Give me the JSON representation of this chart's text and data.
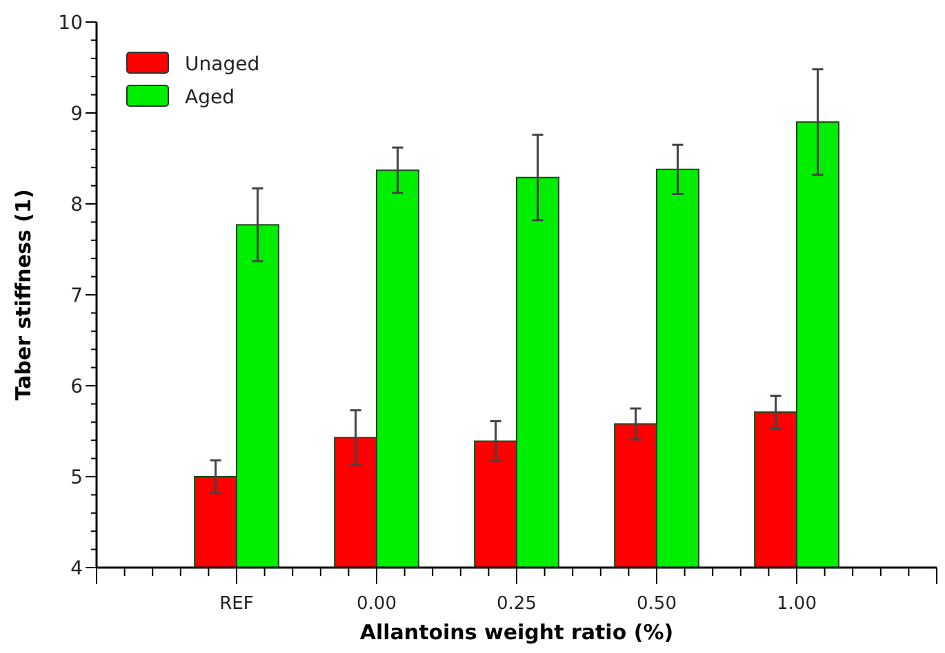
{
  "chart_data": {
    "type": "bar",
    "xlabel": "Allantoins weight ratio (%)",
    "ylabel": "Taber stiffness (1)",
    "categories": [
      null,
      "REF",
      "0.00",
      "0.25",
      "0.50",
      "1.00",
      null
    ],
    "series": [
      {
        "name": "Unaged",
        "color": "#ff0000",
        "values": [
          null,
          5.0,
          5.43,
          5.39,
          5.58,
          5.71,
          null
        ],
        "errors": [
          null,
          0.18,
          0.3,
          0.22,
          0.17,
          0.18,
          null
        ]
      },
      {
        "name": "Aged",
        "color": "#00ee00",
        "values": [
          null,
          7.77,
          8.37,
          8.29,
          8.38,
          8.9,
          null
        ],
        "errors": [
          null,
          0.4,
          0.25,
          0.47,
          0.27,
          0.58,
          null
        ]
      }
    ],
    "ylim": [
      4,
      10
    ],
    "yticks": [
      4,
      {
        "value": 4.2,
        "label": null
      },
      {
        "value": 4.4,
        "label": null
      },
      {
        "value": 4.6,
        "label": null
      },
      {
        "value": 4.8,
        "label": null
      },
      5,
      {
        "value": 5.2,
        "label": null
      },
      {
        "value": 5.4,
        "label": null
      },
      {
        "value": 5.6,
        "label": null
      },
      {
        "value": 5.8,
        "label": null
      },
      6,
      {
        "value": 6.2,
        "label": null
      },
      {
        "value": 6.4,
        "label": null
      },
      {
        "value": 6.6,
        "label": null
      },
      {
        "value": 6.8,
        "label": null
      },
      7,
      {
        "value": 7.2,
        "label": null
      },
      {
        "value": 7.4,
        "label": null
      },
      {
        "value": 7.6,
        "label": null
      },
      {
        "value": 7.8,
        "label": null
      },
      8,
      {
        "value": 8.2,
        "label": null
      },
      {
        "value": 8.4,
        "label": null
      },
      {
        "value": 8.6,
        "label": null
      },
      {
        "value": 8.8,
        "label": null
      },
      9,
      {
        "value": 9.2,
        "label": null
      },
      {
        "value": 9.4,
        "label": null
      },
      {
        "value": 9.6,
        "label": null
      },
      {
        "value": 9.8,
        "label": null
      },
      10
    ],
    "grid": false,
    "legend": "top left"
  }
}
